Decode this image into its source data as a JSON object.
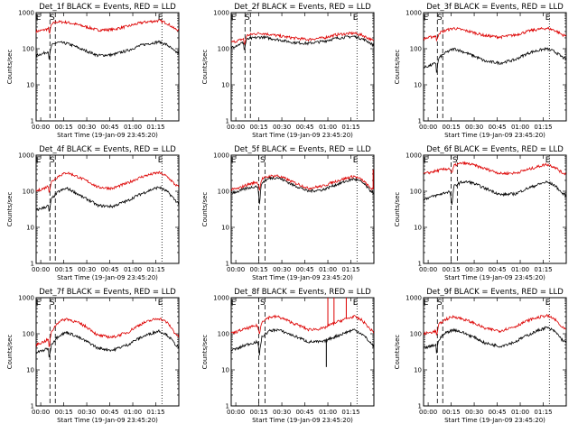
{
  "chart_data": {
    "type": "line",
    "x_ticks": [
      "00:00",
      "00:15",
      "00:30",
      "00:45",
      "01:00",
      "01:15"
    ],
    "xlabel": "Start Time (19-Jan-09 23:45:20)",
    "ylabel": "Counts/sec",
    "y_scale": "log",
    "ylim": [
      1,
      1000
    ],
    "y_ticks": [
      "1",
      "10",
      "100",
      "1000"
    ],
    "xlim_minutes_from_start": [
      0,
      93
    ],
    "series_legend": {
      "black": "Events",
      "red": "LLD"
    },
    "colors": {
      "events": "#000000",
      "lld": "#dd0000"
    },
    "panels": [
      {
        "title": "Det_1f BLACK = Events, RED = LLD",
        "markers": [
          {
            "label": "E",
            "x": 1.5
          },
          {
            "label": "S",
            "x": 10.5
          },
          {
            "label": "E",
            "x": 81
          }
        ],
        "vlines": [
          {
            "x": 9,
            "style": "dashed"
          },
          {
            "x": 12.5,
            "style": "dashed"
          },
          {
            "x": 82,
            "style": "dotted"
          }
        ],
        "x": [
          0,
          5,
          8,
          8.5,
          10,
          11,
          14,
          20,
          30,
          40,
          50,
          60,
          70,
          80,
          85,
          90,
          93
        ],
        "events": [
          65,
          75,
          85,
          45,
          120,
          130,
          150,
          140,
          95,
          65,
          68,
          90,
          130,
          155,
          130,
          85,
          75
        ],
        "lld": [
          300,
          330,
          360,
          250,
          450,
          500,
          560,
          540,
          430,
          330,
          340,
          420,
          540,
          600,
          520,
          360,
          330
        ],
        "spikes": []
      },
      {
        "title": "Det_2f BLACK = Events, RED = LLD",
        "markers": [
          {
            "label": "E",
            "x": 1.5
          },
          {
            "label": "S",
            "x": 10.5
          },
          {
            "label": "E",
            "x": 81
          }
        ],
        "vlines": [
          {
            "x": 9,
            "style": "dashed"
          },
          {
            "x": 12.5,
            "style": "dashed"
          },
          {
            "x": 82,
            "style": "dotted"
          }
        ],
        "x": [
          0,
          5,
          8,
          8.5,
          10,
          15,
          20,
          30,
          40,
          50,
          60,
          70,
          80,
          85,
          90,
          93
        ],
        "events": [
          110,
          130,
          150,
          80,
          180,
          200,
          210,
          180,
          150,
          140,
          160,
          200,
          220,
          190,
          150,
          120
        ],
        "lld": [
          150,
          170,
          190,
          110,
          230,
          260,
          270,
          230,
          200,
          180,
          200,
          250,
          270,
          240,
          190,
          160
        ],
        "spikes": []
      },
      {
        "title": "Det_3f BLACK = Events, RED = LLD",
        "markers": [
          {
            "label": "E",
            "x": 1.5
          },
          {
            "label": "S",
            "x": 10.5
          },
          {
            "label": "E",
            "x": 81
          }
        ],
        "vlines": [
          {
            "x": 9,
            "style": "dashed"
          },
          {
            "x": 12.5,
            "style": "dashed"
          },
          {
            "x": 82,
            "style": "dotted"
          }
        ],
        "x": [
          0,
          5,
          8,
          8.5,
          10,
          15,
          20,
          30,
          40,
          50,
          60,
          70,
          80,
          85,
          90,
          93
        ],
        "events": [
          30,
          35,
          40,
          18,
          55,
          80,
          100,
          70,
          45,
          40,
          50,
          80,
          100,
          85,
          60,
          50
        ],
        "lld": [
          190,
          210,
          230,
          150,
          270,
          330,
          370,
          300,
          230,
          210,
          240,
          320,
          370,
          330,
          250,
          220
        ],
        "spikes": []
      },
      {
        "title": "Det_4f BLACK = Events, RED = LLD",
        "markers": [
          {
            "label": "E",
            "x": 1.5
          },
          {
            "label": "S",
            "x": 10.5
          },
          {
            "label": "E",
            "x": 81
          }
        ],
        "vlines": [
          {
            "x": 9,
            "style": "dashed"
          },
          {
            "x": 12.5,
            "style": "dashed"
          },
          {
            "x": 82,
            "style": "dotted"
          }
        ],
        "x": [
          0,
          5,
          8,
          8.5,
          10,
          15,
          20,
          30,
          40,
          50,
          60,
          70,
          80,
          85,
          90,
          93
        ],
        "events": [
          30,
          35,
          40,
          22,
          60,
          100,
          120,
          70,
          40,
          38,
          55,
          90,
          130,
          100,
          60,
          45
        ],
        "lld": [
          100,
          120,
          140,
          90,
          180,
          270,
          330,
          220,
          130,
          120,
          170,
          260,
          330,
          260,
          160,
          130
        ],
        "spikes": []
      },
      {
        "title": "Det_5f BLACK = Events, RED = LLD",
        "markers": [
          {
            "label": "E",
            "x": 1.5
          },
          {
            "label": "S",
            "x": 20.5
          },
          {
            "label": "E",
            "x": 81
          }
        ],
        "vlines": [
          {
            "x": 18,
            "style": "dashed"
          },
          {
            "x": 22,
            "style": "dashed"
          },
          {
            "x": 82,
            "style": "dotted"
          }
        ],
        "x": [
          0,
          5,
          10,
          17,
          18.5,
          20,
          25,
          30,
          40,
          50,
          60,
          70,
          80,
          85,
          90,
          93
        ],
        "events": [
          90,
          100,
          120,
          140,
          40,
          170,
          230,
          240,
          150,
          100,
          110,
          160,
          220,
          180,
          110,
          90
        ],
        "lld": [
          110,
          120,
          150,
          180,
          110,
          220,
          260,
          270,
          180,
          120,
          140,
          200,
          260,
          210,
          130,
          110
        ],
        "spikes": [
          {
            "series": "lld",
            "x": 92.5,
            "y": 400
          }
        ]
      },
      {
        "title": "Det_6f BLACK = Events, RED = LLD",
        "markers": [
          {
            "label": "E",
            "x": 1.5
          },
          {
            "label": "S",
            "x": 20.5
          },
          {
            "label": "E",
            "x": 81
          }
        ],
        "vlines": [
          {
            "x": 18,
            "style": "dashed"
          },
          {
            "x": 22,
            "style": "dashed"
          },
          {
            "x": 82,
            "style": "dotted"
          }
        ],
        "x": [
          0,
          5,
          10,
          17,
          18.5,
          20,
          25,
          30,
          40,
          50,
          60,
          70,
          80,
          85,
          90,
          93
        ],
        "events": [
          60,
          70,
          80,
          100,
          35,
          140,
          180,
          180,
          120,
          80,
          85,
          130,
          180,
          150,
          90,
          75
        ],
        "lld": [
          300,
          340,
          380,
          430,
          300,
          520,
          600,
          570,
          420,
          310,
          320,
          420,
          560,
          480,
          330,
          300
        ],
        "spikes": []
      },
      {
        "title": "Det_7f BLACK = Events, RED = LLD",
        "markers": [
          {
            "label": "E",
            "x": 1.5
          },
          {
            "label": "S",
            "x": 10.5
          },
          {
            "label": "E",
            "x": 81
          }
        ],
        "vlines": [
          {
            "x": 9,
            "style": "dashed"
          },
          {
            "x": 12.5,
            "style": "dashed"
          },
          {
            "x": 82,
            "style": "dotted"
          }
        ],
        "x": [
          0,
          5,
          8,
          8.5,
          10,
          15,
          20,
          30,
          40,
          50,
          60,
          70,
          80,
          85,
          90,
          93
        ],
        "events": [
          30,
          35,
          40,
          18,
          50,
          90,
          110,
          70,
          40,
          35,
          50,
          85,
          120,
          95,
          55,
          40
        ],
        "lld": [
          50,
          60,
          70,
          35,
          110,
          220,
          260,
          180,
          90,
          80,
          110,
          200,
          270,
          210,
          110,
          80
        ],
        "spikes": []
      },
      {
        "title": "Det_8f BLACK = Events, RED = LLD",
        "markers": [
          {
            "label": "E",
            "x": 1.5
          },
          {
            "label": "S",
            "x": 20.5
          },
          {
            "label": "E",
            "x": 81
          }
        ],
        "vlines": [
          {
            "x": 18,
            "style": "dashed"
          },
          {
            "x": 22,
            "style": "dashed"
          },
          {
            "x": 82,
            "style": "dotted"
          }
        ],
        "x": [
          0,
          5,
          10,
          17,
          18.5,
          20,
          25,
          30,
          40,
          50,
          60,
          70,
          80,
          85,
          90,
          93
        ],
        "events": [
          35,
          40,
          50,
          60,
          25,
          80,
          120,
          130,
          90,
          60,
          60,
          90,
          130,
          100,
          60,
          45
        ],
        "lld": [
          100,
          120,
          140,
          170,
          90,
          220,
          290,
          300,
          200,
          130,
          140,
          220,
          300,
          240,
          140,
          110
        ],
        "spikes": [
          {
            "series": "lld",
            "x": 63,
            "y": 1000
          },
          {
            "series": "lld",
            "x": 67,
            "y": 1000
          },
          {
            "series": "lld",
            "x": 75,
            "y": 1000
          },
          {
            "series": "events",
            "x": 62,
            "y": 12
          }
        ]
      },
      {
        "title": "Det_9f BLACK = Events, RED = LLD",
        "markers": [
          {
            "label": "E",
            "x": 1.5
          },
          {
            "label": "S",
            "x": 10.5
          },
          {
            "label": "E",
            "x": 81
          }
        ],
        "vlines": [
          {
            "x": 9,
            "style": "dashed"
          },
          {
            "x": 12.5,
            "style": "dashed"
          },
          {
            "x": 82,
            "style": "dotted"
          }
        ],
        "x": [
          0,
          5,
          8,
          8.5,
          10,
          15,
          20,
          30,
          40,
          50,
          60,
          70,
          80,
          85,
          90,
          93
        ],
        "events": [
          40,
          45,
          50,
          25,
          70,
          110,
          130,
          90,
          55,
          45,
          60,
          100,
          150,
          120,
          70,
          55
        ],
        "lld": [
          100,
          110,
          120,
          80,
          180,
          260,
          300,
          220,
          140,
          120,
          160,
          250,
          320,
          260,
          150,
          130
        ],
        "spikes": []
      }
    ]
  }
}
